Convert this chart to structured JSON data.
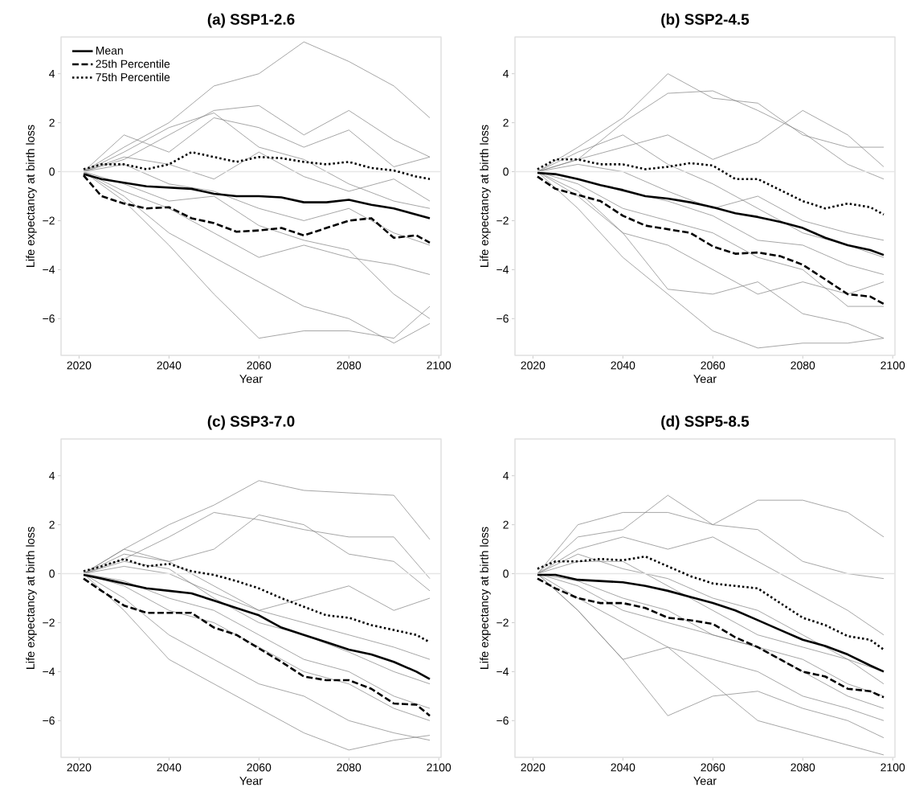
{
  "chart_data": [
    {
      "type": "line",
      "title": "(a) SSP1-2.6",
      "xlabel": "Year",
      "ylabel": "Life expectancy at birth loss",
      "legend": "top left",
      "x": [
        2021,
        2025,
        2030,
        2035,
        2040,
        2045,
        2050,
        2055,
        2060,
        2065,
        2070,
        2075,
        2080,
        2085,
        2090,
        2095,
        2098
      ],
      "xlim": [
        2016,
        2100.5
      ],
      "ylim": [
        -7.5,
        5.5
      ],
      "xticks": [
        2020,
        2040,
        2060,
        2080,
        2100
      ],
      "yticks": [
        {
          "value": -6,
          "label": "−6"
        },
        {
          "value": -4,
          "label": "−4"
        },
        {
          "value": -2,
          "label": "−2"
        },
        0,
        2,
        4
      ],
      "ref_lines": [
        {
          "axis": "y",
          "value": 0,
          "color": "#e6e6e6"
        }
      ],
      "series": [
        {
          "color": "#808080",
          "x": [
            2021,
            2030,
            2040,
            2050,
            2060,
            2070,
            2080,
            2090,
            2098
          ],
          "values": [
            0,
            1.0,
            2.0,
            3.5,
            4.0,
            5.3,
            4.5,
            3.5,
            2.2
          ]
        },
        {
          "color": "#808080",
          "x": [
            2021,
            2030,
            2040,
            2050,
            2060,
            2070,
            2080,
            2090,
            2098
          ],
          "values": [
            0,
            0.5,
            1.5,
            2.5,
            2.7,
            1.5,
            2.5,
            1.3,
            0.6
          ]
        },
        {
          "color": "#808080",
          "x": [
            2021,
            2030,
            2040,
            2050,
            2060,
            2070,
            2080,
            2090,
            2098
          ],
          "values": [
            0,
            -1.2,
            -3.0,
            -5.0,
            -6.8,
            -6.5,
            -6.5,
            -6.8,
            -5.5
          ]
        },
        {
          "color": "#808080",
          "x": [
            2021,
            2030,
            2040,
            2050,
            2060,
            2070,
            2080,
            2090,
            2098
          ],
          "values": [
            0,
            -1.0,
            -2.5,
            -3.5,
            -4.5,
            -5.5,
            -6.0,
            -7.0,
            -6.2
          ]
        },
        {
          "color": "#808080",
          "x": [
            2021,
            2030,
            2040,
            2050,
            2060,
            2070,
            2080,
            2090,
            2098
          ],
          "values": [
            0,
            0.8,
            1.8,
            2.4,
            1.0,
            0.5,
            -0.5,
            -1.2,
            -1.5
          ]
        },
        {
          "color": "#808080",
          "x": [
            2021,
            2030,
            2040,
            2050,
            2060,
            2070,
            2080,
            2090,
            2098
          ],
          "values": [
            0,
            -0.8,
            -1.5,
            -2.5,
            -3.5,
            -3.0,
            -3.5,
            -3.8,
            -4.2
          ]
        },
        {
          "color": "#808080",
          "x": [
            2021,
            2030,
            2040,
            2050,
            2060,
            2070,
            2080,
            2090,
            2098
          ],
          "values": [
            0,
            0.3,
            -0.5,
            -0.8,
            -1.5,
            -2.0,
            -1.5,
            -2.5,
            -3.0
          ]
        },
        {
          "color": "#808080",
          "x": [
            2021,
            2030,
            2040,
            2050,
            2060,
            2070,
            2080,
            2090,
            2098
          ],
          "values": [
            0,
            1.5,
            0.8,
            2.2,
            1.8,
            1.0,
            1.7,
            0.2,
            0.6
          ]
        },
        {
          "color": "#808080",
          "x": [
            2021,
            2030,
            2040,
            2050,
            2060,
            2070,
            2080,
            2090,
            2098
          ],
          "values": [
            0,
            -0.5,
            -1.2,
            -1.0,
            -2.2,
            -2.8,
            -3.2,
            -5.0,
            -6.0
          ]
        },
        {
          "color": "#808080",
          "x": [
            2021,
            2030,
            2040,
            2050,
            2060,
            2070,
            2080,
            2090,
            2098
          ],
          "values": [
            0,
            0.6,
            0.3,
            -0.3,
            0.8,
            -0.2,
            -0.8,
            -0.3,
            -1.2
          ]
        },
        {
          "name": "Mean",
          "color": "#000000",
          "line_style": "solid",
          "values": [
            -0.1,
            -0.3,
            -0.45,
            -0.6,
            -0.65,
            -0.7,
            -0.9,
            -1.0,
            -1.0,
            -1.05,
            -1.25,
            -1.25,
            -1.15,
            -1.35,
            -1.5,
            -1.75,
            -1.9
          ]
        },
        {
          "name": "25th Percentile",
          "color": "#000000",
          "line_style": "dashed",
          "values": [
            -0.15,
            -1.0,
            -1.3,
            -1.5,
            -1.45,
            -1.9,
            -2.1,
            -2.45,
            -2.4,
            -2.3,
            -2.6,
            -2.3,
            -2.0,
            -1.9,
            -2.7,
            -2.6,
            -2.9
          ]
        },
        {
          "name": "75th Percentile",
          "color": "#000000",
          "line_style": "dotted",
          "values": [
            0.1,
            0.3,
            0.3,
            0.1,
            0.3,
            0.8,
            0.6,
            0.4,
            0.6,
            0.55,
            0.4,
            0.3,
            0.4,
            0.15,
            0.05,
            -0.2,
            -0.3
          ]
        }
      ]
    },
    {
      "type": "line",
      "title": "(b) SSP2-4.5",
      "xlabel": "Year",
      "ylabel": "Life expectancy at birth loss",
      "x": [
        2021,
        2025,
        2030,
        2035,
        2040,
        2045,
        2050,
        2055,
        2060,
        2065,
        2070,
        2075,
        2080,
        2085,
        2090,
        2095,
        2098
      ],
      "xlim": [
        2016,
        2100.5
      ],
      "ylim": [
        -7.5,
        5.5
      ],
      "xticks": [
        2020,
        2040,
        2060,
        2080,
        2100
      ],
      "yticks": [
        {
          "value": -6,
          "label": "−6"
        },
        {
          "value": -4,
          "label": "−4"
        },
        {
          "value": -2,
          "label": "−2"
        },
        0,
        2,
        4
      ],
      "ref_lines": [
        {
          "axis": "y",
          "value": 0,
          "color": "#e6e6e6"
        }
      ],
      "series": [
        {
          "color": "#808080",
          "x": [
            2021,
            2030,
            2040,
            2050,
            2060,
            2070,
            2080,
            2090,
            2098
          ],
          "values": [
            0,
            1.0,
            2.2,
            4.0,
            3.0,
            2.8,
            1.5,
            1.0,
            1.0
          ]
        },
        {
          "color": "#808080",
          "x": [
            2021,
            2030,
            2040,
            2050,
            2060,
            2070,
            2080,
            2090,
            2098
          ],
          "values": [
            0,
            0.5,
            2.0,
            3.2,
            3.3,
            2.5,
            1.6,
            0.3,
            -0.3
          ]
        },
        {
          "color": "#808080",
          "x": [
            2021,
            2030,
            2040,
            2050,
            2060,
            2070,
            2080,
            2090,
            2098
          ],
          "values": [
            0,
            -1.5,
            -3.5,
            -5.0,
            -6.5,
            -7.2,
            -7.0,
            -7.0,
            -6.8
          ]
        },
        {
          "color": "#808080",
          "x": [
            2021,
            2030,
            2040,
            2050,
            2060,
            2070,
            2080,
            2090,
            2098
          ],
          "values": [
            0,
            -0.8,
            -2.5,
            -4.8,
            -5.0,
            -4.5,
            -5.8,
            -6.2,
            -6.8
          ]
        },
        {
          "color": "#808080",
          "x": [
            2021,
            2030,
            2040,
            2050,
            2060,
            2070,
            2080,
            2090,
            2098
          ],
          "values": [
            0,
            0.5,
            1.0,
            1.5,
            0.5,
            1.2,
            2.5,
            1.5,
            0.2
          ]
        },
        {
          "color": "#808080",
          "x": [
            2021,
            2030,
            2040,
            2050,
            2060,
            2070,
            2080,
            2090,
            2098
          ],
          "values": [
            0,
            -0.5,
            -1.5,
            -2.0,
            -2.5,
            -3.5,
            -4.0,
            -5.5,
            -5.5
          ]
        },
        {
          "color": "#808080",
          "x": [
            2021,
            2030,
            2040,
            2050,
            2060,
            2070,
            2080,
            2090,
            2098
          ],
          "values": [
            0,
            0.3,
            0.0,
            -0.8,
            -1.5,
            -1.0,
            -2.0,
            -2.5,
            -2.8
          ]
        },
        {
          "color": "#808080",
          "x": [
            2021,
            2030,
            2040,
            2050,
            2060,
            2070,
            2080,
            2090,
            2098
          ],
          "values": [
            0,
            -1.0,
            -2.5,
            -3.0,
            -4.0,
            -5.0,
            -4.5,
            -5.0,
            -4.5
          ]
        },
        {
          "color": "#808080",
          "x": [
            2021,
            2030,
            2040,
            2050,
            2060,
            2070,
            2080,
            2090,
            2098
          ],
          "values": [
            0,
            0.8,
            1.5,
            0.3,
            -0.5,
            -1.5,
            -2.5,
            -3.0,
            -3.5
          ]
        },
        {
          "color": "#808080",
          "x": [
            2021,
            2030,
            2040,
            2050,
            2060,
            2070,
            2080,
            2090,
            2098
          ],
          "values": [
            0,
            -0.3,
            -0.8,
            -1.2,
            -1.8,
            -2.8,
            -3.0,
            -3.8,
            -4.2
          ]
        },
        {
          "color": "#000000",
          "line_style": "solid",
          "values": [
            -0.05,
            -0.1,
            -0.3,
            -0.55,
            -0.75,
            -1.0,
            -1.1,
            -1.25,
            -1.45,
            -1.7,
            -1.85,
            -2.05,
            -2.3,
            -2.7,
            -3.0,
            -3.2,
            -3.4
          ]
        },
        {
          "color": "#000000",
          "line_style": "dashed",
          "values": [
            -0.2,
            -0.7,
            -0.95,
            -1.2,
            -1.8,
            -2.2,
            -2.35,
            -2.5,
            -3.05,
            -3.35,
            -3.3,
            -3.45,
            -3.8,
            -4.4,
            -5.0,
            -5.1,
            -5.4
          ]
        },
        {
          "color": "#000000",
          "line_style": "dotted",
          "values": [
            0.1,
            0.5,
            0.5,
            0.3,
            0.3,
            0.1,
            0.2,
            0.35,
            0.25,
            -0.3,
            -0.3,
            -0.75,
            -1.2,
            -1.5,
            -1.3,
            -1.45,
            -1.75
          ]
        }
      ]
    },
    {
      "type": "line",
      "title": "(c) SSP3-7.0",
      "xlabel": "Year",
      "ylabel": "Life expectancy at birth loss",
      "x": [
        2021,
        2025,
        2030,
        2035,
        2040,
        2045,
        2050,
        2055,
        2060,
        2065,
        2070,
        2075,
        2080,
        2085,
        2090,
        2095,
        2098
      ],
      "xlim": [
        2016,
        2100.5
      ],
      "ylim": [
        -7.5,
        5.5
      ],
      "xticks": [
        2020,
        2040,
        2060,
        2080,
        2100
      ],
      "yticks": [
        {
          "value": -6,
          "label": "−6"
        },
        {
          "value": -4,
          "label": "−4"
        },
        {
          "value": -2,
          "label": "−2"
        },
        0,
        2,
        4
      ],
      "ref_lines": [
        {
          "axis": "y",
          "value": 0,
          "color": "#e6e6e6"
        }
      ],
      "series": [
        {
          "color": "#808080",
          "x": [
            2021,
            2030,
            2040,
            2050,
            2060,
            2070,
            2080,
            2090,
            2098
          ],
          "values": [
            0,
            1.0,
            2.0,
            2.8,
            3.8,
            3.4,
            3.3,
            3.2,
            1.4
          ]
        },
        {
          "color": "#808080",
          "x": [
            2021,
            2030,
            2040,
            2050,
            2060,
            2070,
            2080,
            2090,
            2098
          ],
          "values": [
            0,
            0.6,
            1.5,
            2.5,
            2.2,
            1.8,
            1.5,
            1.5,
            -0.2
          ]
        },
        {
          "color": "#808080",
          "x": [
            2021,
            2030,
            2040,
            2050,
            2060,
            2070,
            2080,
            2090,
            2098
          ],
          "values": [
            0,
            0.8,
            0.5,
            1.0,
            2.4,
            2.0,
            0.8,
            0.5,
            -0.7
          ]
        },
        {
          "color": "#808080",
          "x": [
            2021,
            2030,
            2040,
            2050,
            2060,
            2070,
            2080,
            2090,
            2098
          ],
          "values": [
            0,
            -1.5,
            -3.5,
            -4.5,
            -5.5,
            -6.5,
            -7.2,
            -6.8,
            -6.6
          ]
        },
        {
          "color": "#808080",
          "x": [
            2021,
            2030,
            2040,
            2050,
            2060,
            2070,
            2080,
            2090,
            2098
          ],
          "values": [
            0,
            -1.0,
            -2.5,
            -3.5,
            -4.5,
            -5.0,
            -6.0,
            -6.5,
            -6.8
          ]
        },
        {
          "color": "#808080",
          "x": [
            2021,
            2030,
            2040,
            2050,
            2060,
            2070,
            2080,
            2090,
            2098
          ],
          "values": [
            0,
            0.3,
            0.0,
            -0.8,
            -1.5,
            -1.0,
            -0.5,
            -1.5,
            -1.0
          ]
        },
        {
          "color": "#808080",
          "x": [
            2021,
            2030,
            2040,
            2050,
            2060,
            2070,
            2080,
            2090,
            2098
          ],
          "values": [
            0,
            -0.5,
            -1.5,
            -2.0,
            -3.0,
            -4.0,
            -4.5,
            -5.5,
            -6.0
          ]
        },
        {
          "color": "#808080",
          "x": [
            2021,
            2030,
            2040,
            2050,
            2060,
            2070,
            2080,
            2090,
            2098
          ],
          "values": [
            0,
            0.5,
            0.2,
            -1.0,
            -2.0,
            -2.5,
            -3.2,
            -4.0,
            -4.5
          ]
        },
        {
          "color": "#808080",
          "x": [
            2021,
            2030,
            2040,
            2050,
            2060,
            2070,
            2080,
            2090,
            2098
          ],
          "values": [
            0,
            -0.3,
            -1.0,
            -1.5,
            -2.5,
            -3.5,
            -4.0,
            -5.0,
            -5.5
          ]
        },
        {
          "color": "#808080",
          "x": [
            2021,
            2030,
            2040,
            2050,
            2060,
            2070,
            2080,
            2090,
            2098
          ],
          "values": [
            0,
            1.0,
            0.5,
            -0.5,
            -1.5,
            -2.0,
            -2.5,
            -3.0,
            -3.5
          ]
        },
        {
          "color": "#000000",
          "line_style": "solid",
          "values": [
            -0.05,
            -0.2,
            -0.4,
            -0.6,
            -0.7,
            -0.8,
            -1.1,
            -1.4,
            -1.7,
            -2.2,
            -2.5,
            -2.8,
            -3.1,
            -3.3,
            -3.6,
            -4.0,
            -4.3
          ]
        },
        {
          "color": "#000000",
          "line_style": "dashed",
          "values": [
            -0.2,
            -0.7,
            -1.3,
            -1.6,
            -1.6,
            -1.6,
            -2.2,
            -2.5,
            -3.05,
            -3.6,
            -4.2,
            -4.35,
            -4.35,
            -4.7,
            -5.3,
            -5.35,
            -5.8
          ]
        },
        {
          "color": "#000000",
          "line_style": "dotted",
          "values": [
            0.1,
            0.3,
            0.6,
            0.3,
            0.4,
            0.1,
            -0.05,
            -0.3,
            -0.6,
            -1.0,
            -1.35,
            -1.7,
            -1.8,
            -2.1,
            -2.3,
            -2.5,
            -2.8
          ]
        }
      ]
    },
    {
      "type": "line",
      "title": "(d) SSP5-8.5",
      "xlabel": "Year",
      "ylabel": "Life expectancy at birth loss",
      "x": [
        2021,
        2025,
        2030,
        2035,
        2040,
        2045,
        2050,
        2055,
        2060,
        2065,
        2070,
        2075,
        2080,
        2085,
        2090,
        2095,
        2098
      ],
      "xlim": [
        2016,
        2100.5
      ],
      "ylim": [
        -7.5,
        5.5
      ],
      "xticks": [
        2020,
        2040,
        2060,
        2080,
        2100
      ],
      "yticks": [
        {
          "value": -6,
          "label": "−6"
        },
        {
          "value": -4,
          "label": "−4"
        },
        {
          "value": -2,
          "label": "−2"
        },
        0,
        2,
        4
      ],
      "ref_lines": [
        {
          "axis": "y",
          "value": 0,
          "color": "#e6e6e6"
        }
      ],
      "series": [
        {
          "color": "#808080",
          "x": [
            2021,
            2030,
            2040,
            2050,
            2060,
            2070,
            2080,
            2090,
            2098
          ],
          "values": [
            0,
            2.0,
            2.5,
            2.5,
            2.0,
            3.0,
            3.0,
            2.5,
            1.5
          ]
        },
        {
          "color": "#808080",
          "x": [
            2021,
            2030,
            2040,
            2050,
            2060,
            2070,
            2080,
            2090,
            2098
          ],
          "values": [
            0,
            1.5,
            1.8,
            3.2,
            2.0,
            1.8,
            0.5,
            0.0,
            -0.2
          ]
        },
        {
          "color": "#808080",
          "x": [
            2021,
            2030,
            2040,
            2050,
            2060,
            2070,
            2080,
            2090,
            2098
          ],
          "values": [
            0,
            -1.5,
            -3.5,
            -5.8,
            -5.0,
            -4.8,
            -5.5,
            -6.0,
            -6.7
          ]
        },
        {
          "color": "#808080",
          "x": [
            2021,
            2030,
            2040,
            2050,
            2060,
            2070,
            2080,
            2090,
            2098
          ],
          "values": [
            0,
            -1.5,
            -3.5,
            -3.0,
            -4.5,
            -6.0,
            -6.5,
            -7.0,
            -7.4
          ]
        },
        {
          "color": "#808080",
          "x": [
            2021,
            2030,
            2040,
            2050,
            2060,
            2070,
            2080,
            2090,
            2098
          ],
          "values": [
            0,
            1.0,
            1.5,
            1.0,
            1.5,
            0.5,
            -0.5,
            -1.5,
            -2.5
          ]
        },
        {
          "color": "#808080",
          "x": [
            2021,
            2030,
            2040,
            2050,
            2060,
            2070,
            2080,
            2090,
            2098
          ],
          "values": [
            0,
            -0.5,
            -1.5,
            -2.0,
            -2.5,
            -3.0,
            -4.0,
            -5.0,
            -5.5
          ]
        },
        {
          "color": "#808080",
          "x": [
            2021,
            2030,
            2040,
            2050,
            2060,
            2070,
            2080,
            2090,
            2098
          ],
          "values": [
            0,
            0.5,
            0.5,
            -0.5,
            -1.5,
            -2.5,
            -3.0,
            -3.5,
            -4.5
          ]
        },
        {
          "color": "#808080",
          "x": [
            2021,
            2030,
            2040,
            2050,
            2060,
            2070,
            2080,
            2090,
            2098
          ],
          "values": [
            0,
            -1.0,
            -2.0,
            -3.0,
            -3.5,
            -4.0,
            -5.0,
            -5.5,
            -6.0
          ]
        },
        {
          "color": "#808080",
          "x": [
            2021,
            2030,
            2040,
            2050,
            2060,
            2070,
            2080,
            2090,
            2098
          ],
          "values": [
            0,
            0.8,
            0.2,
            -0.2,
            -1.0,
            -1.5,
            -2.5,
            -3.5,
            -4.0
          ]
        },
        {
          "color": "#808080",
          "x": [
            2021,
            2030,
            2040,
            2050,
            2060,
            2070,
            2080,
            2090,
            2098
          ],
          "values": [
            0,
            -0.3,
            -1.0,
            -1.5,
            -2.5,
            -3.0,
            -3.5,
            -4.5,
            -5.0
          ]
        },
        {
          "color": "#000000",
          "line_style": "solid",
          "values": [
            -0.05,
            -0.05,
            -0.25,
            -0.3,
            -0.35,
            -0.5,
            -0.7,
            -0.95,
            -1.2,
            -1.5,
            -1.9,
            -2.3,
            -2.7,
            -2.95,
            -3.3,
            -3.75,
            -4.0
          ]
        },
        {
          "color": "#000000",
          "line_style": "dashed",
          "values": [
            -0.2,
            -0.6,
            -1.0,
            -1.2,
            -1.2,
            -1.4,
            -1.8,
            -1.9,
            -2.05,
            -2.6,
            -3.0,
            -3.5,
            -4.0,
            -4.2,
            -4.7,
            -4.8,
            -5.05
          ]
        },
        {
          "color": "#000000",
          "line_style": "dotted",
          "values": [
            0.2,
            0.5,
            0.5,
            0.6,
            0.55,
            0.7,
            0.3,
            -0.1,
            -0.4,
            -0.5,
            -0.6,
            -1.2,
            -1.8,
            -2.1,
            -2.55,
            -2.7,
            -3.1
          ]
        }
      ]
    }
  ]
}
